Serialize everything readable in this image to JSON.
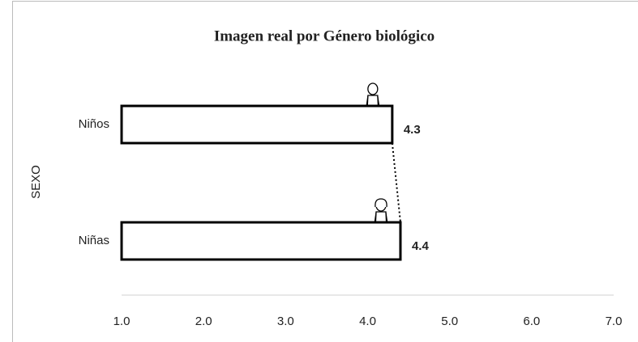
{
  "chart_data": {
    "type": "bar",
    "orientation": "horizontal",
    "title": "Imagen real por Género biológico",
    "y_label": "SEXO",
    "categories": [
      "Niños",
      "Niñas"
    ],
    "values": [
      4.3,
      4.4
    ],
    "color": "#ffffff",
    "edge_color": "#000000",
    "xlim": [
      1,
      7
    ],
    "xticks": [
      {
        "value": 1,
        "label": "1.0"
      },
      {
        "value": 2,
        "label": "2.0"
      },
      {
        "value": 3,
        "label": "3.0"
      },
      {
        "value": 4,
        "label": "4.0"
      },
      {
        "value": 5,
        "label": "5.0"
      },
      {
        "value": 6,
        "label": "6.0"
      },
      {
        "value": 7,
        "label": "7.0"
      }
    ],
    "grid": false
  }
}
